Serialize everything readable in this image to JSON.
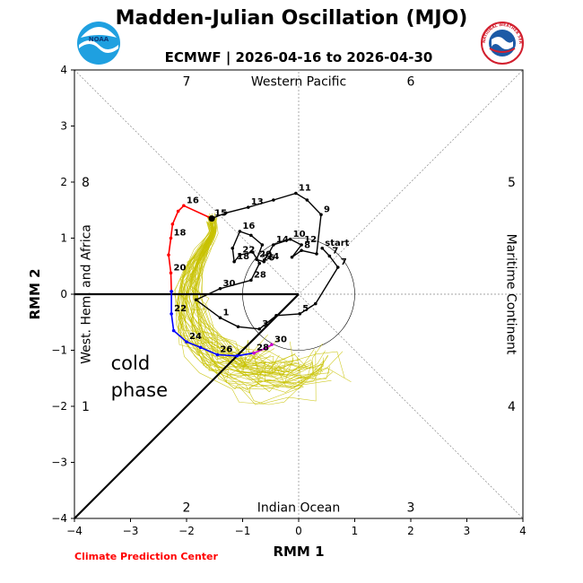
{
  "header": {
    "title": "Madden-Julian Oscillation (MJO)",
    "subtitle": "ECMWF | 2026-04-16 to 2026-04-30"
  },
  "logos": {
    "left": "NOAA",
    "right": "NATIONAL WEATHER SERVICE"
  },
  "footer": {
    "credit": "Climate Prediction Center"
  },
  "chart_data": {
    "type": "phase-diagram",
    "title": "Madden-Julian Oscillation (MJO)",
    "subtitle": "ECMWF | 2026-04-16 to 2026-04-30",
    "xlabel": "RMM 1",
    "ylabel": "RMM 2",
    "xlim": [
      -4,
      4
    ],
    "ylim": [
      -4,
      4
    ],
    "xticks": [
      "−4",
      "−3",
      "−2",
      "−1",
      "0",
      "1",
      "2",
      "3",
      "4"
    ],
    "yticks": [
      "−4",
      "−3",
      "−2",
      "−1",
      "0",
      "1",
      "2",
      "3",
      "4"
    ],
    "phase_numbers": [
      {
        "label": "1",
        "x": -3.8,
        "y": -2.0
      },
      {
        "label": "2",
        "x": -2.0,
        "y": -3.8
      },
      {
        "label": "3",
        "x": 2.0,
        "y": -3.8
      },
      {
        "label": "4",
        "x": 3.8,
        "y": -2.0
      },
      {
        "label": "5",
        "x": 3.8,
        "y": 2.0
      },
      {
        "label": "6",
        "x": 2.0,
        "y": 3.8
      },
      {
        "label": "7",
        "x": -2.0,
        "y": 3.8
      },
      {
        "label": "8",
        "x": -3.8,
        "y": 2.0
      }
    ],
    "region_labels": {
      "top": "Western Pacific",
      "bottom": "Indian Ocean",
      "left": "West. Hem. and Africa",
      "right": "Maritime Continent"
    },
    "annotation": [
      "cold",
      "phase"
    ],
    "observed_track": {
      "color": "#000000",
      "points": [
        {
          "x": 0.42,
          "y": 0.82,
          "label": "start"
        },
        {
          "x": 0.55,
          "y": 0.68,
          "label": "7"
        },
        {
          "x": 0.7,
          "y": 0.48,
          "label": "7"
        },
        {
          "x": 0.3,
          "y": -0.17,
          "label": ""
        },
        {
          "x": 0.02,
          "y": -0.35,
          "label": "5"
        },
        {
          "x": -0.4,
          "y": -0.38,
          "label": ""
        },
        {
          "x": -0.7,
          "y": -0.62,
          "label": "3"
        },
        {
          "x": -1.08,
          "y": -0.58,
          "label": ""
        },
        {
          "x": -1.4,
          "y": -0.42,
          "label": "1"
        },
        {
          "x": -1.83,
          "y": -0.1,
          "label": ""
        },
        {
          "x": -1.4,
          "y": 0.1,
          "label": "30"
        },
        {
          "x": -0.85,
          "y": 0.25,
          "label": "28"
        },
        {
          "x": -0.7,
          "y": 0.55,
          "label": "26"
        },
        {
          "x": -0.82,
          "y": 0.75,
          "label": ""
        },
        {
          "x": -1.05,
          "y": 0.7,
          "label": "22"
        },
        {
          "x": -1.15,
          "y": 0.58,
          "label": "18"
        },
        {
          "x": -1.18,
          "y": 0.82,
          "label": ""
        },
        {
          "x": -1.05,
          "y": 1.12,
          "label": "16"
        },
        {
          "x": -0.85,
          "y": 1.05,
          "label": ""
        },
        {
          "x": -0.65,
          "y": 0.88,
          "label": ""
        },
        {
          "x": -0.75,
          "y": 0.62,
          "label": "20"
        },
        {
          "x": -0.62,
          "y": 0.58,
          "label": "24"
        },
        {
          "x": -0.45,
          "y": 0.88,
          "label": "14"
        },
        {
          "x": -0.15,
          "y": 0.98,
          "label": "10"
        },
        {
          "x": 0.05,
          "y": 0.88,
          "label": "12"
        },
        {
          "x": -0.12,
          "y": 0.66,
          "label": ""
        },
        {
          "x": 0.05,
          "y": 0.78,
          "label": "8"
        },
        {
          "x": 0.32,
          "y": 0.72,
          "label": ""
        },
        {
          "x": 0.4,
          "y": 1.42,
          "label": "9"
        },
        {
          "x": 0.15,
          "y": 1.68,
          "label": ""
        },
        {
          "x": -0.05,
          "y": 1.8,
          "label": "11"
        },
        {
          "x": -0.45,
          "y": 1.68,
          "label": ""
        },
        {
          "x": -0.9,
          "y": 1.55,
          "label": "13"
        },
        {
          "x": -1.3,
          "y": 1.45,
          "label": ""
        },
        {
          "x": -1.55,
          "y": 1.35,
          "label": "15"
        }
      ]
    },
    "forecast_segments": [
      {
        "color": "#ff0000",
        "points": [
          {
            "x": -1.55,
            "y": 1.35,
            "label": "15"
          },
          {
            "x": -2.05,
            "y": 1.58,
            "label": "16"
          },
          {
            "x": -2.15,
            "y": 1.48,
            "label": ""
          },
          {
            "x": -2.25,
            "y": 1.25,
            "label": ""
          },
          {
            "x": -2.28,
            "y": 1.0,
            "label": "18"
          },
          {
            "x": -2.32,
            "y": 0.7,
            "label": ""
          },
          {
            "x": -2.28,
            "y": 0.38,
            "label": "20"
          },
          {
            "x": -2.27,
            "y": 0.05,
            "label": ""
          }
        ]
      },
      {
        "color": "#0000ff",
        "points": [
          {
            "x": -2.27,
            "y": 0.05,
            "label": ""
          },
          {
            "x": -2.27,
            "y": -0.35,
            "label": "22"
          },
          {
            "x": -2.23,
            "y": -0.65,
            "label": ""
          },
          {
            "x": -2.0,
            "y": -0.85,
            "label": "24"
          },
          {
            "x": -1.75,
            "y": -0.95,
            "label": ""
          },
          {
            "x": -1.45,
            "y": -1.08,
            "label": "26"
          },
          {
            "x": -1.1,
            "y": -1.1,
            "label": ""
          },
          {
            "x": -0.8,
            "y": -1.05,
            "label": "28"
          }
        ]
      },
      {
        "color": "#cc00cc",
        "points": [
          {
            "x": -0.8,
            "y": -1.05,
            "label": "28"
          },
          {
            "x": -0.6,
            "y": -0.97,
            "label": ""
          },
          {
            "x": -0.48,
            "y": -0.9,
            "label": "30"
          }
        ]
      }
    ],
    "forecast_start": {
      "x": -1.55,
      "y": 1.35
    },
    "ensemble_color": "#c8c200",
    "ensemble_member_count": 50
  }
}
